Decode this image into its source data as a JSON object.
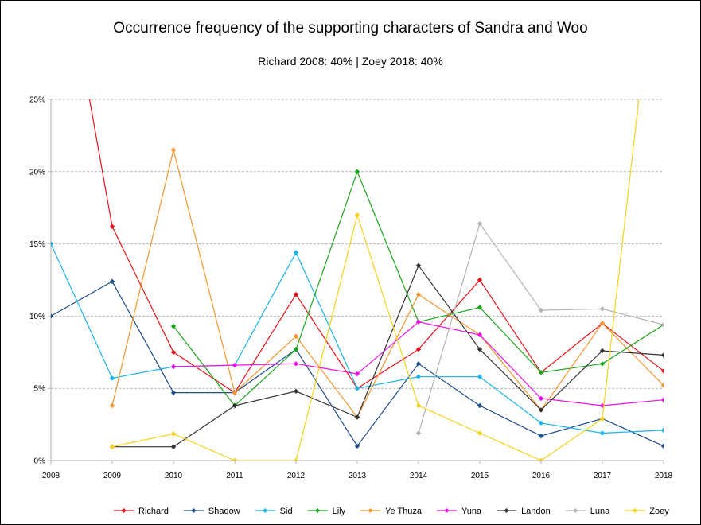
{
  "chart_data": {
    "type": "line",
    "title": "Occurrence frequency of the supporting characters of Sandra and Woo",
    "subtitle": "Richard 2008: 40% | Zoey 2018: 40%",
    "xlabel": "",
    "ylabel": "",
    "x": [
      "2008",
      "2009",
      "2010",
      "2011",
      "2012",
      "2013",
      "2014",
      "2015",
      "2016",
      "2017",
      "2018"
    ],
    "ylim": [
      0,
      25
    ],
    "yticks": [
      "0%",
      "5%",
      "10%",
      "15%",
      "20%",
      "25%"
    ],
    "grid": true,
    "legend": "bottom",
    "series": [
      {
        "name": "Richard",
        "color": "#e8131a",
        "values": [
          40,
          16.2,
          7.5,
          4.7,
          11.5,
          5.0,
          7.7,
          12.5,
          6.1,
          9.5,
          6.2
        ]
      },
      {
        "name": "Shadow",
        "color": "#1f4e8c",
        "values": [
          10.0,
          12.4,
          4.7,
          4.7,
          7.7,
          1.0,
          6.7,
          3.8,
          1.7,
          2.9,
          1.0
        ]
      },
      {
        "name": "Sid",
        "color": "#1ab3ea",
        "values": [
          15.0,
          5.7,
          6.5,
          6.6,
          14.4,
          5.0,
          5.8,
          5.8,
          2.6,
          1.9,
          2.1
        ]
      },
      {
        "name": "Lily",
        "color": "#1aa71a",
        "values": [
          null,
          null,
          9.3,
          3.8,
          7.7,
          20.0,
          9.6,
          10.6,
          6.1,
          6.7,
          9.4
        ]
      },
      {
        "name": "Ye Thuza",
        "color": "#f2962e",
        "values": [
          null,
          3.8,
          21.5,
          4.7,
          8.6,
          3.0,
          11.5,
          8.7,
          3.5,
          9.5,
          5.2
        ]
      },
      {
        "name": "Yuna",
        "color": "#ee10ea",
        "values": [
          null,
          null,
          6.5,
          6.6,
          6.7,
          6.0,
          9.6,
          8.7,
          4.3,
          3.8,
          4.2
        ]
      },
      {
        "name": "Landon",
        "color": "#333333",
        "values": [
          null,
          0.95,
          0.95,
          3.8,
          4.8,
          3.0,
          13.5,
          7.7,
          3.5,
          7.6,
          7.3
        ]
      },
      {
        "name": "Luna",
        "color": "#b4b4b4",
        "values": [
          null,
          null,
          null,
          null,
          null,
          null,
          1.9,
          16.4,
          10.4,
          10.5,
          9.4
        ]
      },
      {
        "name": "Zoey",
        "color": "#f7d21a",
        "values": [
          null,
          0.95,
          1.85,
          0,
          0,
          17.0,
          3.8,
          1.9,
          0,
          2.9,
          40
        ]
      }
    ]
  }
}
